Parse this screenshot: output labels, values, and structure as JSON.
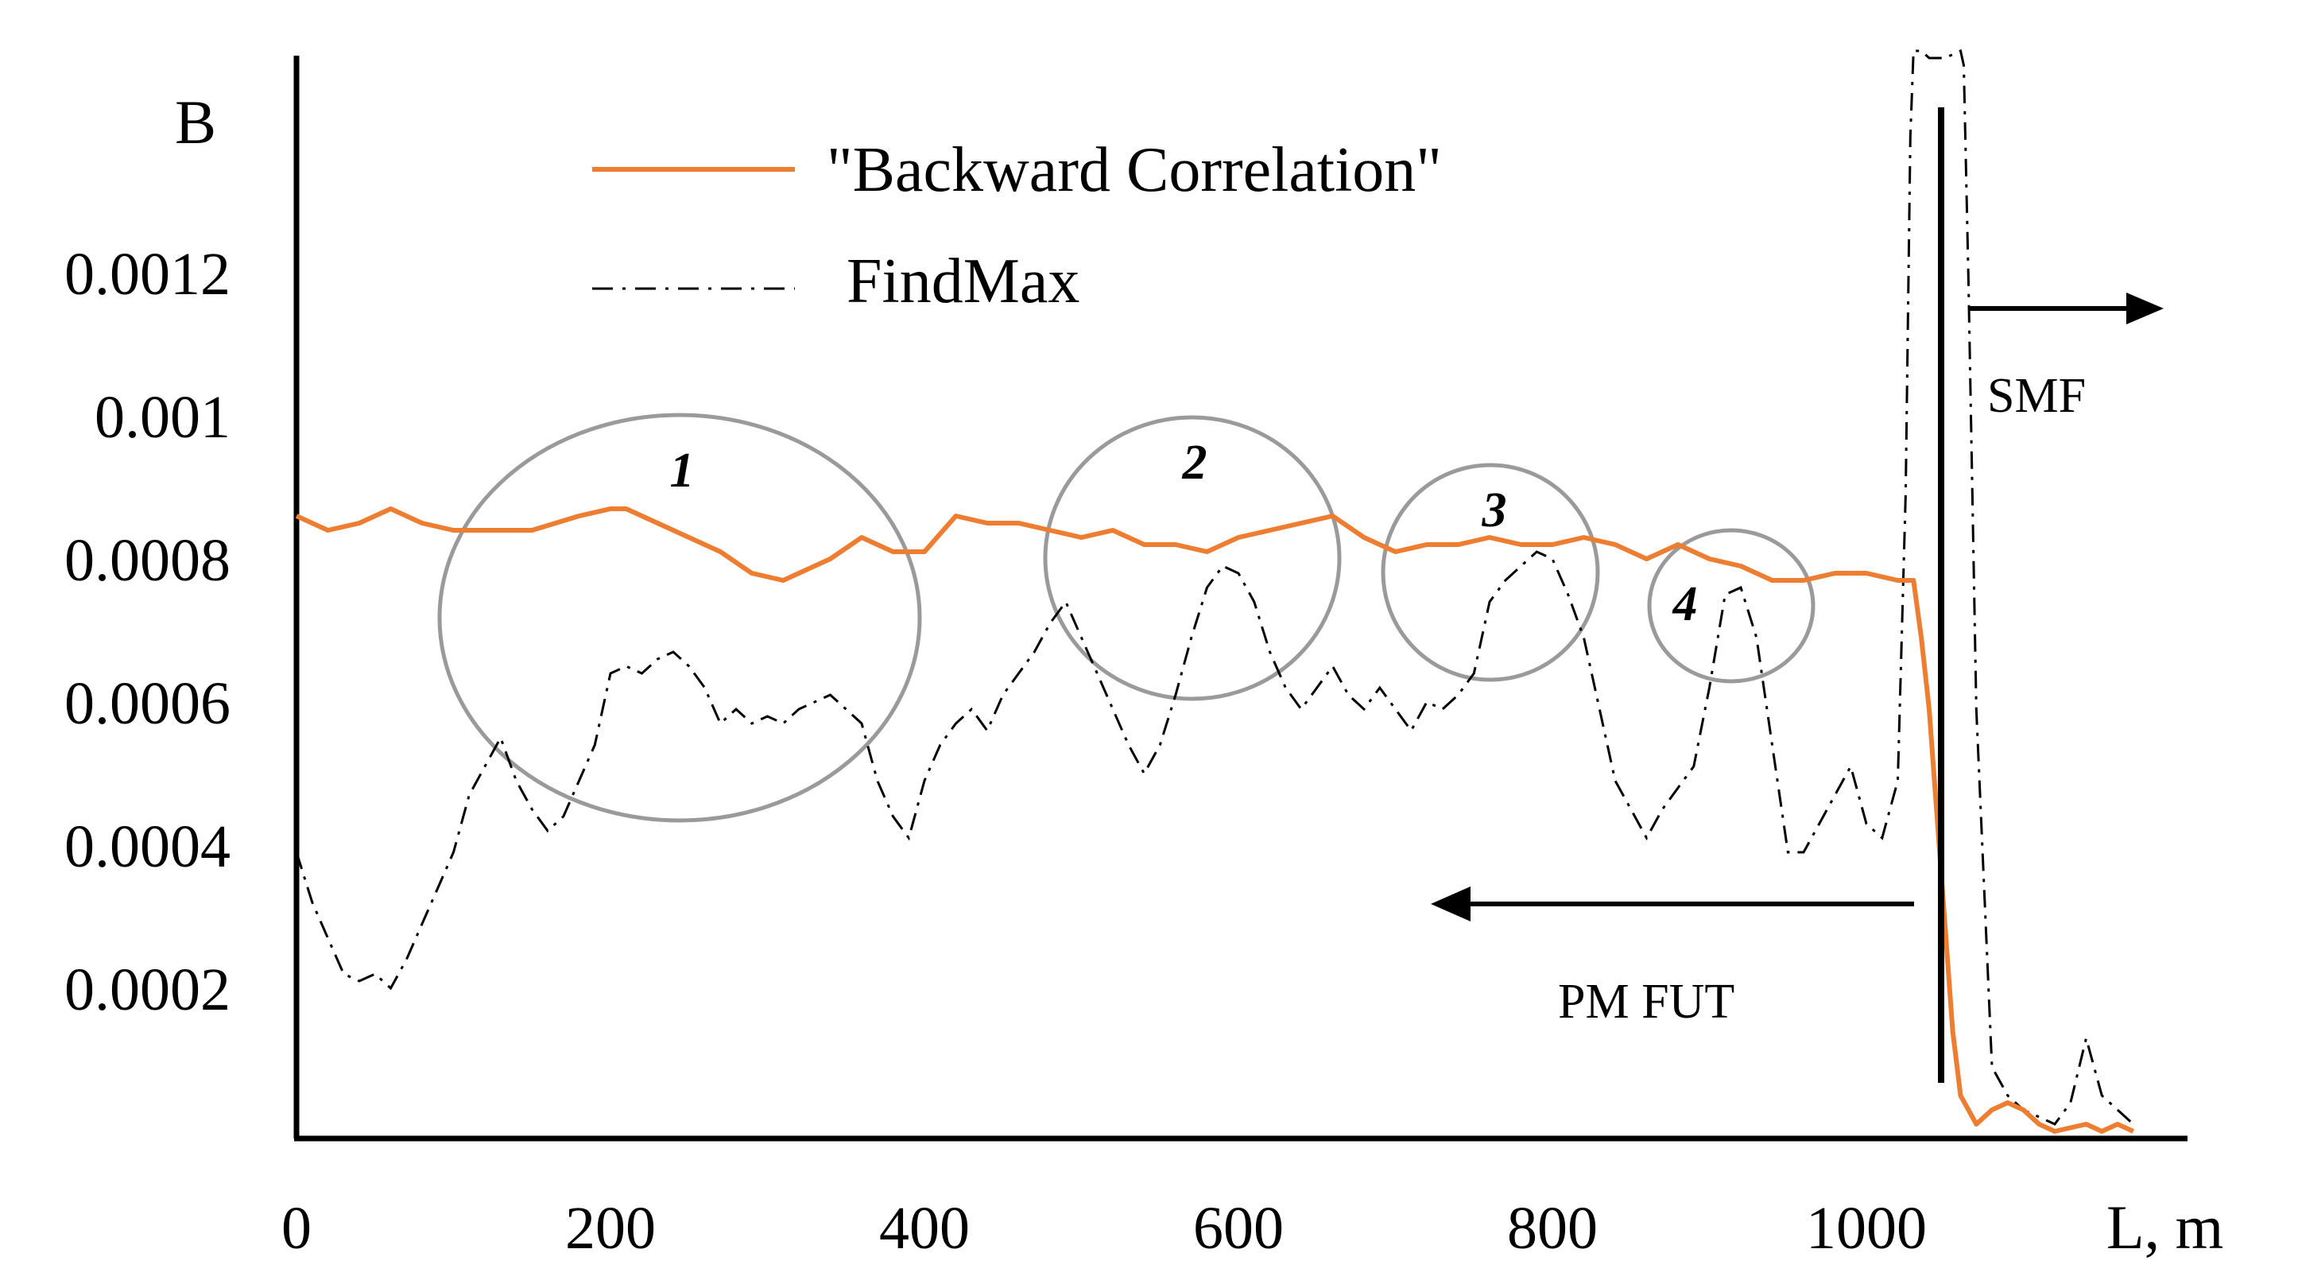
{
  "chart_data": {
    "type": "line",
    "ylabel": "B",
    "xlabel": "L, m",
    "xlim": [
      0,
      1200
    ],
    "ylim": [
      0,
      0.0015
    ],
    "x_ticks": [
      "0",
      "200",
      "400",
      "600",
      "800",
      "1000"
    ],
    "y_ticks": [
      "0.0002",
      "0.0004",
      "0.0006",
      "0.0008",
      "0.001",
      "0.0012"
    ],
    "grid": false,
    "legend_position": "top-left",
    "series": [
      {
        "name": "\"Backward Correlation\"",
        "color": "#ed7d31",
        "style": "solid",
        "x": [
          0,
          20,
          40,
          60,
          80,
          100,
          120,
          150,
          180,
          200,
          210,
          230,
          250,
          270,
          290,
          310,
          320,
          340,
          360,
          370,
          380,
          400,
          420,
          440,
          460,
          480,
          500,
          520,
          540,
          560,
          580,
          600,
          620,
          640,
          660,
          680,
          700,
          720,
          740,
          760,
          780,
          800,
          820,
          840,
          860,
          870,
          880,
          900,
          920,
          940,
          960,
          980,
          1000,
          1020,
          1030,
          1035,
          1040,
          1045,
          1050,
          1055,
          1060,
          1070,
          1080,
          1090,
          1100,
          1110,
          1120,
          1140,
          1150,
          1160,
          1170
        ],
        "y": [
          0.00087,
          0.00085,
          0.00086,
          0.00088,
          0.00086,
          0.00085,
          0.00085,
          0.00085,
          0.00087,
          0.00088,
          0.00088,
          0.00086,
          0.00084,
          0.00082,
          0.00079,
          0.00078,
          0.00079,
          0.00081,
          0.00084,
          0.00083,
          0.00082,
          0.00082,
          0.00087,
          0.00086,
          0.00086,
          0.00085,
          0.00084,
          0.00085,
          0.00083,
          0.00083,
          0.00082,
          0.00084,
          0.00085,
          0.00086,
          0.00087,
          0.00084,
          0.00082,
          0.00083,
          0.00083,
          0.00084,
          0.00083,
          0.00083,
          0.00084,
          0.00083,
          0.00081,
          0.00082,
          0.00083,
          0.00081,
          0.0008,
          0.00078,
          0.00078,
          0.00079,
          0.00079,
          0.00078,
          0.00078,
          0.0007,
          0.0006,
          0.00045,
          0.0003,
          0.00015,
          6e-05,
          2e-05,
          4e-05,
          5e-05,
          4e-05,
          2e-05,
          1e-05,
          2e-05,
          1e-05,
          2e-05,
          1e-05
        ]
      },
      {
        "name": "FindMax",
        "color": "#000000",
        "style": "dash-dot",
        "x": [
          0,
          10,
          20,
          30,
          40,
          50,
          60,
          70,
          80,
          90,
          100,
          110,
          120,
          130,
          140,
          150,
          160,
          170,
          180,
          190,
          200,
          210,
          220,
          230,
          240,
          250,
          260,
          270,
          280,
          290,
          300,
          310,
          320,
          330,
          340,
          350,
          360,
          370,
          380,
          390,
          400,
          410,
          420,
          430,
          440,
          450,
          460,
          470,
          480,
          490,
          500,
          510,
          520,
          530,
          540,
          550,
          560,
          570,
          580,
          590,
          600,
          610,
          620,
          630,
          640,
          650,
          660,
          670,
          680,
          690,
          700,
          710,
          720,
          730,
          740,
          750,
          760,
          770,
          780,
          790,
          800,
          810,
          820,
          830,
          840,
          850,
          860,
          870,
          880,
          890,
          900,
          910,
          920,
          930,
          940,
          950,
          960,
          970,
          980,
          990,
          1000,
          1010,
          1020,
          1025,
          1028,
          1030,
          1035,
          1040,
          1050,
          1060,
          1062,
          1065,
          1070,
          1080,
          1090,
          1100,
          1110,
          1120,
          1130,
          1140,
          1150,
          1160,
          1170
        ],
        "y": [
          0.0004,
          0.00033,
          0.00028,
          0.00023,
          0.00022,
          0.00023,
          0.00021,
          0.00025,
          0.0003,
          0.00035,
          0.0004,
          0.00048,
          0.00052,
          0.00056,
          0.0005,
          0.00046,
          0.00043,
          0.00045,
          0.0005,
          0.00055,
          0.00065,
          0.00066,
          0.00065,
          0.00067,
          0.00068,
          0.00066,
          0.00063,
          0.00058,
          0.0006,
          0.00058,
          0.00059,
          0.00058,
          0.0006,
          0.00061,
          0.00062,
          0.0006,
          0.00058,
          0.0005,
          0.00045,
          0.00042,
          0.0005,
          0.00055,
          0.00058,
          0.0006,
          0.00057,
          0.00062,
          0.00065,
          0.00068,
          0.00072,
          0.00075,
          0.0007,
          0.00065,
          0.0006,
          0.00055,
          0.00051,
          0.00055,
          0.00062,
          0.0007,
          0.00077,
          0.0008,
          0.00079,
          0.00075,
          0.00068,
          0.00063,
          0.0006,
          0.00063,
          0.00066,
          0.00062,
          0.0006,
          0.00063,
          0.0006,
          0.00057,
          0.00061,
          0.0006,
          0.00062,
          0.00065,
          0.00075,
          0.00078,
          0.0008,
          0.00082,
          0.00081,
          0.00076,
          0.0007,
          0.0006,
          0.0005,
          0.00046,
          0.00042,
          0.00046,
          0.00049,
          0.00052,
          0.00063,
          0.00076,
          0.00077,
          0.0007,
          0.00055,
          0.0004,
          0.0004,
          0.00044,
          0.00048,
          0.00052,
          0.00044,
          0.00042,
          0.0005,
          0.0009,
          0.0014,
          0.00152,
          0.00152,
          0.00151,
          0.00151,
          0.00152,
          0.0015,
          0.0012,
          0.0006,
          0.0001,
          6e-05,
          4e-05,
          3e-05,
          2e-05,
          5e-05,
          0.00014,
          6e-05,
          4e-05,
          2e-05
        ]
      }
    ],
    "annotations": {
      "circle_labels": [
        "1",
        "2",
        "3",
        "4"
      ],
      "smf_label": "SMF",
      "pmfut_label": "PM FUT"
    }
  }
}
